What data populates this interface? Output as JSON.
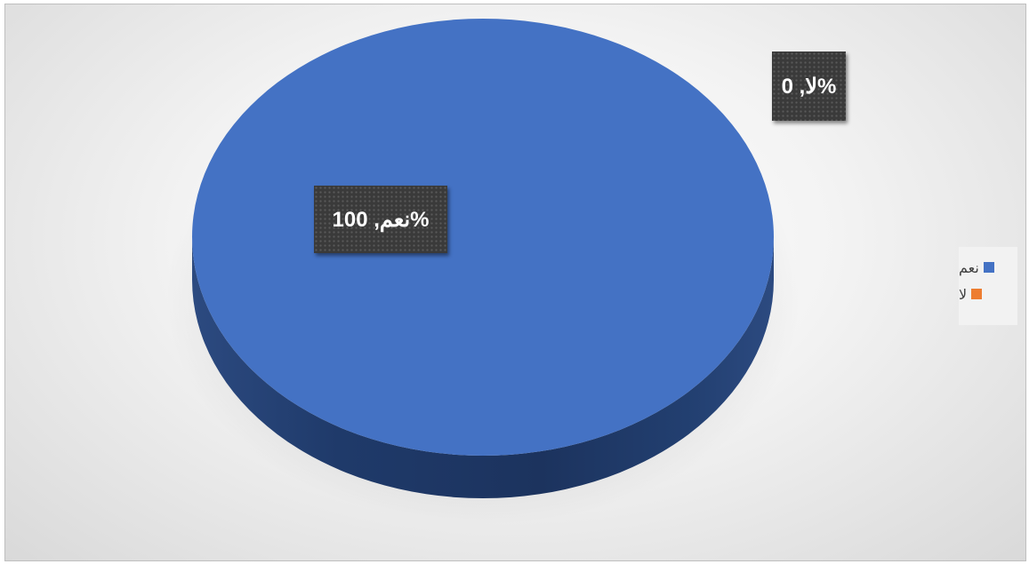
{
  "chart_data": {
    "type": "pie",
    "style": "3d",
    "categories": [
      "نعم",
      "لا"
    ],
    "values": [
      100,
      0
    ],
    "unit": "%",
    "colors": [
      "#4472c4",
      "#ed7d31"
    ],
    "data_labels": [
      {
        "category": "نعم",
        "text": "نعم, 100%"
      },
      {
        "category": "لا",
        "text": "لا, 0%"
      }
    ],
    "legend": {
      "position": "right",
      "entries": [
        {
          "label": "نعم",
          "color": "#4472c4"
        },
        {
          "label": "لا",
          "color": "#ed7d31"
        }
      ]
    }
  }
}
